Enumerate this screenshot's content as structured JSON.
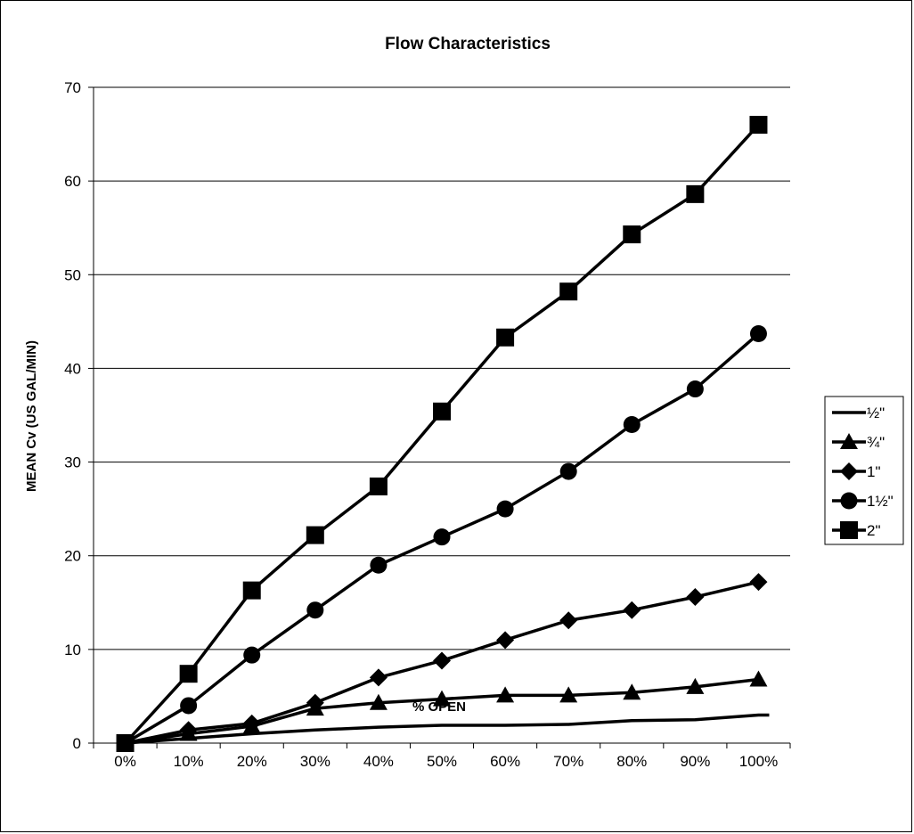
{
  "chart_data": {
    "type": "line",
    "title": "Flow Characteristics",
    "xlabel": "% OPEN",
    "ylabel": "MEAN Cv (US GAL/MIN)",
    "categories": [
      "0%",
      "10%",
      "20%",
      "30%",
      "40%",
      "50%",
      "60%",
      "70%",
      "80%",
      "90%",
      "100%"
    ],
    "ylim": [
      0,
      70
    ],
    "yticks": [
      0,
      10,
      20,
      30,
      40,
      50,
      60,
      70
    ],
    "grid": "horizontal",
    "legend_position": "right",
    "series": [
      {
        "name": "½\"",
        "marker": "none",
        "values": [
          0,
          0.5,
          1.0,
          1.4,
          1.7,
          1.9,
          1.9,
          2.0,
          2.4,
          2.5,
          3.0
        ]
      },
      {
        "name": "¾\"",
        "marker": "triangle",
        "values": [
          0,
          1.0,
          1.8,
          3.7,
          4.3,
          4.7,
          5.1,
          5.1,
          5.4,
          6.0,
          6.8
        ]
      },
      {
        "name": "1\"",
        "marker": "diamond",
        "values": [
          0,
          1.4,
          2.1,
          4.3,
          7.0,
          8.8,
          11.0,
          13.1,
          14.2,
          15.6,
          17.2
        ]
      },
      {
        "name": "1½\"",
        "marker": "circle",
        "values": [
          0,
          4.0,
          9.4,
          14.2,
          19.0,
          22.0,
          25.0,
          29.0,
          34.0,
          37.8,
          43.7
        ]
      },
      {
        "name": "2\"",
        "marker": "square",
        "values": [
          0,
          7.4,
          16.3,
          22.2,
          27.4,
          35.4,
          43.3,
          48.2,
          54.3,
          58.6,
          66.0
        ]
      }
    ]
  }
}
